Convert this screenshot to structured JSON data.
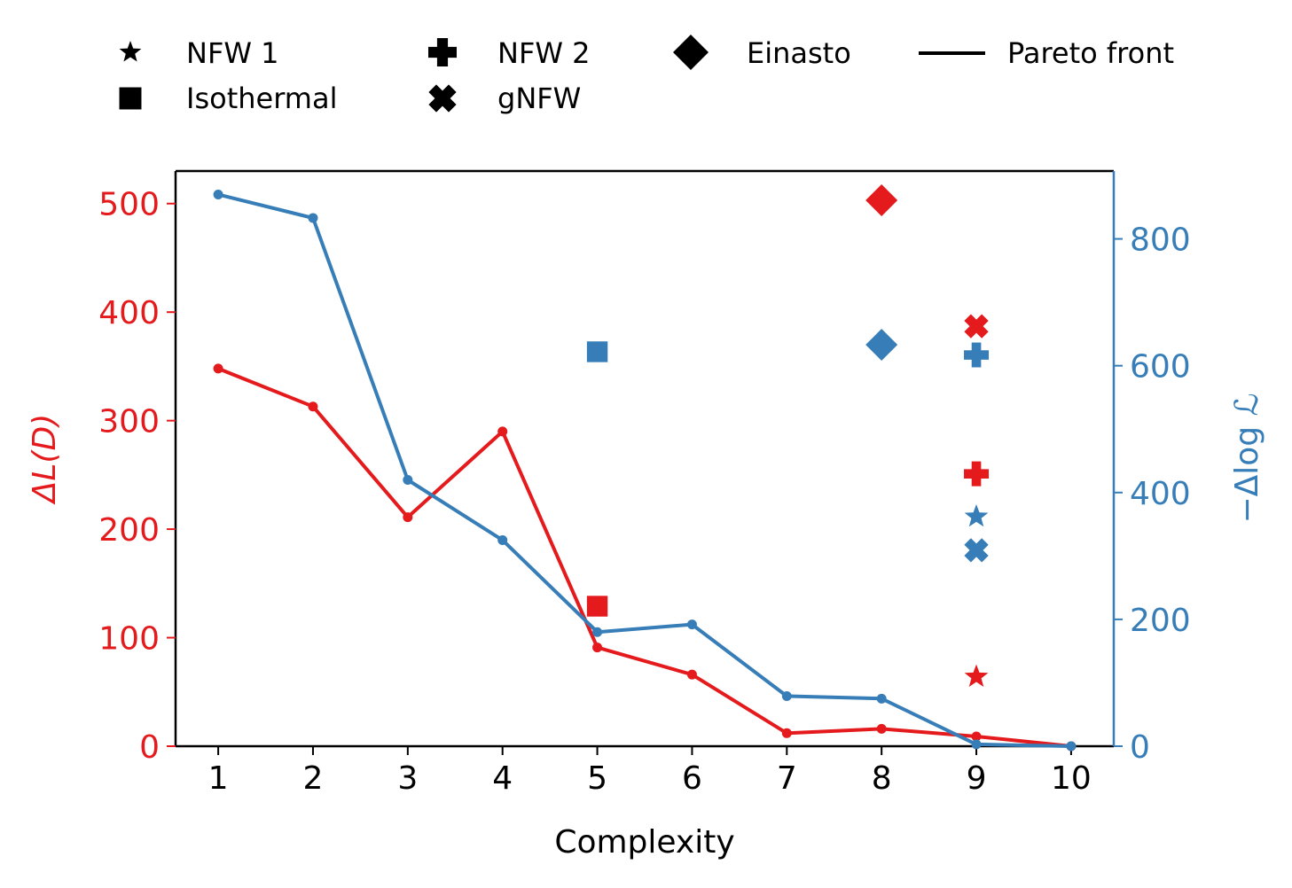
{
  "chart_data": {
    "type": "line",
    "xlabel": "Complexity",
    "ylabel_left": "ΔL(D)",
    "ylabel_right": "−Δlog ℒ",
    "x": [
      1,
      2,
      3,
      4,
      5,
      6,
      7,
      8,
      9,
      10
    ],
    "xticks": [
      "1",
      "2",
      "3",
      "4",
      "5",
      "6",
      "7",
      "8",
      "9",
      "10"
    ],
    "xlim": [
      0.55,
      10.45
    ],
    "ylim_left": [
      0,
      530
    ],
    "ylim_right": [
      0,
      907
    ],
    "yticks_left": [
      "0",
      "100",
      "200",
      "300",
      "400",
      "500"
    ],
    "yticks_right": [
      "0",
      "200",
      "400",
      "600",
      "800"
    ],
    "colors": {
      "left": "#e41a1c",
      "right": "#377eb8"
    },
    "series": [
      {
        "name": "ΔL(D) Pareto front",
        "axis": "left",
        "color": "#e41a1c",
        "values": [
          348,
          313,
          211,
          290,
          91,
          66,
          12,
          16,
          9,
          0
        ]
      },
      {
        "name": "−Δlog ℒ Pareto front",
        "axis": "right",
        "color": "#377eb8",
        "values": [
          870,
          833,
          420,
          325,
          180,
          192,
          79,
          75,
          3,
          0
        ]
      }
    ],
    "markers": [
      {
        "model": "NFW 1",
        "shape": "star",
        "x": 9,
        "left": 64,
        "right": 362
      },
      {
        "model": "NFW 2",
        "shape": "plus",
        "x": 9,
        "left": 251,
        "right": 617
      },
      {
        "model": "Einasto",
        "shape": "diamond",
        "x": 8,
        "left": 503,
        "right": 633
      },
      {
        "model": "Isothermal",
        "shape": "square",
        "x": 5,
        "left": 129,
        "right": 622
      },
      {
        "model": "gNFW",
        "shape": "cross",
        "x": 9,
        "left": 387,
        "right": 309
      }
    ],
    "legend": [
      {
        "label": "NFW 1",
        "shape": "star"
      },
      {
        "label": "NFW 2",
        "shape": "plus"
      },
      {
        "label": "Einasto",
        "shape": "diamond"
      },
      {
        "label": "Pareto front",
        "shape": "line"
      },
      {
        "label": "Isothermal",
        "shape": "square"
      },
      {
        "label": "gNFW",
        "shape": "cross"
      }
    ]
  }
}
